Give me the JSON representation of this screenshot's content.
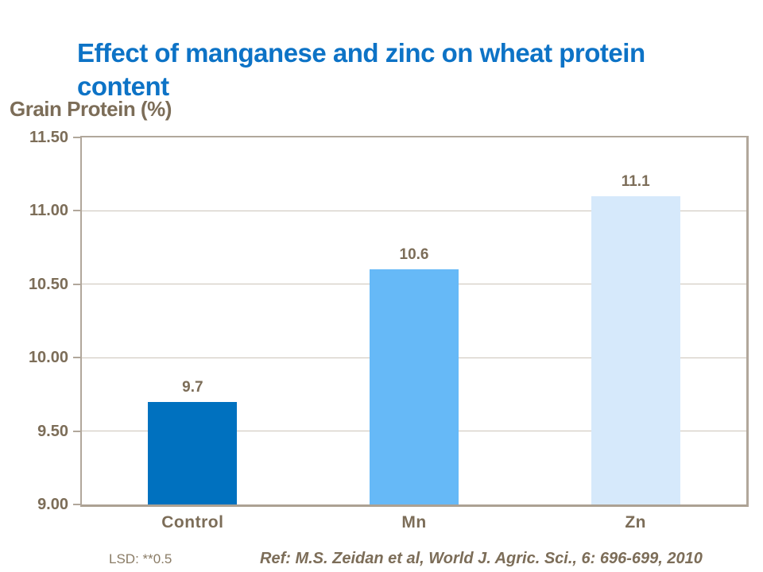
{
  "title": {
    "line1": "Effect of manganese and zinc on wheat protein",
    "line2": "content"
  },
  "y_axis_title": "Grain Protein (%)",
  "footer": {
    "lsd": "LSD: **0.5",
    "reference": "Ref: M.S. Zeidan et al, World J. Agric. Sci., 6: 696-699, 2010"
  },
  "colors": {
    "title_blue": "#0d73c6",
    "text_brown": "#7c6d58",
    "axis_line": "#b1a79b",
    "gridline": "#ccc4ba",
    "bar_control": "#0071bf",
    "bar_mn": "#66b9f7",
    "bar_zn": "#d6e9fb",
    "background": "#ffffff"
  },
  "chart_data": {
    "type": "bar",
    "title": "Effect of manganese and zinc on wheat protein content",
    "categories": [
      "Control",
      "Mn",
      "Zn"
    ],
    "values": [
      9.7,
      10.6,
      11.1
    ],
    "value_labels": [
      "9.7",
      "10.6",
      "11.1"
    ],
    "bar_colors": [
      "#0071bf",
      "#66b9f7",
      "#d6e9fb"
    ],
    "xlabel": "",
    "ylabel": "Grain Protein (%)",
    "ylim": [
      9.0,
      11.5
    ],
    "ytick_step": 0.5,
    "ytick_labels": [
      "11.50",
      "11.00",
      "10.50",
      "10.00",
      "9.50",
      "9.00"
    ],
    "grid": true,
    "legend": false,
    "annotations": [
      "LSD: **0.5",
      "Ref: M.S. Zeidan et al, World J. Agric. Sci., 6: 696-699, 2010"
    ]
  }
}
